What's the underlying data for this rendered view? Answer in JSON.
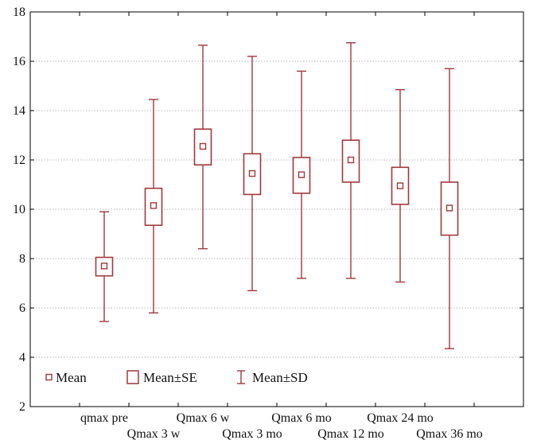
{
  "chart_data": {
    "type": "box",
    "categories": [
      "qmax pre",
      "Qmax 3 w",
      "Qmax 6 w",
      "Qmax 3 mo",
      "Qmax 6 mo",
      "Qmax 12 mo",
      "Qmax 24 mo",
      "Qmax 36 mo"
    ],
    "mean": [
      7.7,
      10.15,
      12.55,
      11.45,
      11.4,
      12.0,
      10.95,
      10.05
    ],
    "se_low": [
      7.3,
      9.35,
      11.8,
      10.6,
      10.65,
      11.1,
      10.2,
      8.95
    ],
    "se_high": [
      8.05,
      10.85,
      13.25,
      12.25,
      12.1,
      12.8,
      11.7,
      11.1
    ],
    "sd_low": [
      5.45,
      5.8,
      8.4,
      6.7,
      7.2,
      7.2,
      7.05,
      4.35
    ],
    "sd_high": [
      9.9,
      14.45,
      16.65,
      16.2,
      15.6,
      16.75,
      14.85,
      15.7
    ],
    "ylim": [
      2,
      18
    ],
    "yticks": [
      2,
      4,
      6,
      8,
      10,
      12,
      14,
      16,
      18
    ],
    "title": "",
    "xlabel": "",
    "ylabel": "",
    "grid": true,
    "legend": {
      "placement": "bottom-left",
      "items": [
        {
          "symbol": "mean-marker",
          "label": "Mean"
        },
        {
          "symbol": "se-box",
          "label": "Mean±SE"
        },
        {
          "symbol": "sd-whisker",
          "label": "Mean±SD"
        }
      ]
    },
    "colors": {
      "series": "#a0393c",
      "grid": "#b8b8b8",
      "axis": "#000000"
    }
  }
}
